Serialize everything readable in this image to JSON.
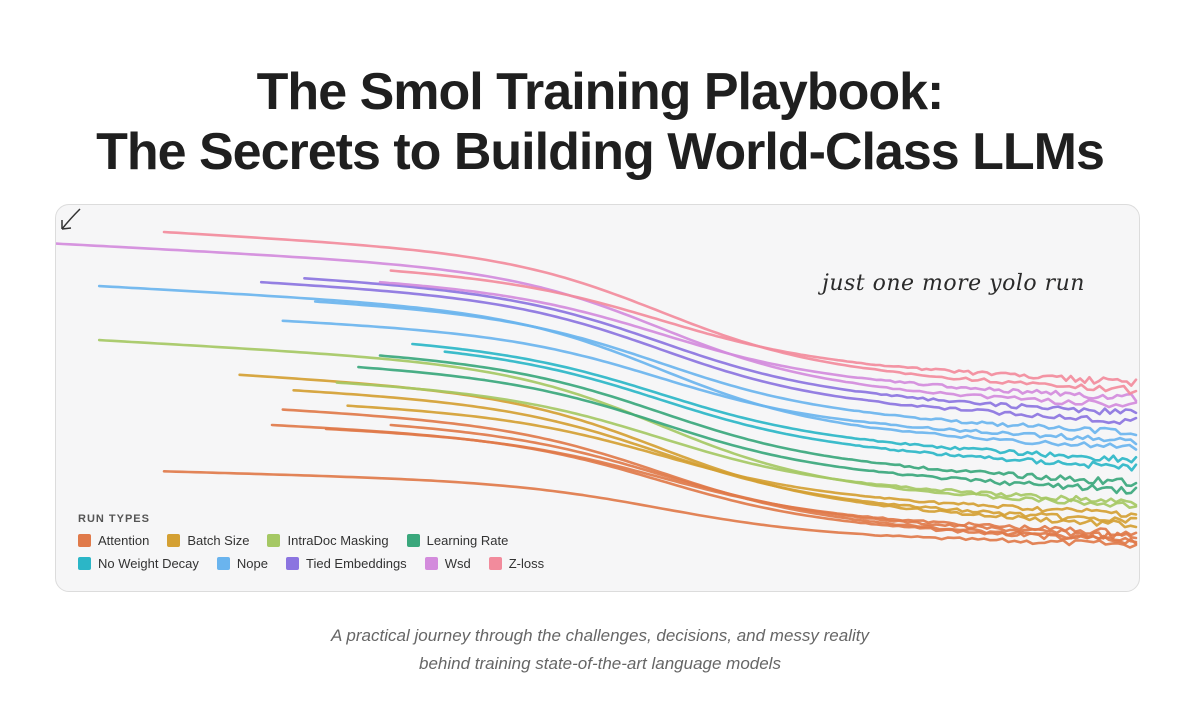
{
  "title": {
    "line1": "The Smol Training Playbook:",
    "line2": "The Secrets to Building World-Class LLMs"
  },
  "subtitle": {
    "line1": "A practical journey through the challenges, decisions, and messy reality",
    "line2": "behind training state-of-the-art language models"
  },
  "chart_data": {
    "type": "line",
    "title": "",
    "xlabel": "",
    "ylabel": "",
    "annotation": "just one more yolo run",
    "grid": false,
    "legend_placement": "bottom-left",
    "legend_title": "RUN TYPES",
    "series": [
      {
        "name": "Attention",
        "color": "#e07a4a",
        "start": [
          0.1,
          0.69
        ],
        "end": 0.88
      },
      {
        "name": "Attention",
        "color": "#e07a4a",
        "start": [
          0.21,
          0.53
        ],
        "end": 0.87
      },
      {
        "name": "Attention",
        "color": "#e07a4a",
        "start": [
          0.2,
          0.57
        ],
        "end": 0.87
      },
      {
        "name": "Attention",
        "color": "#e07a4a",
        "start": [
          0.31,
          0.57
        ],
        "end": 0.86
      },
      {
        "name": "Attention",
        "color": "#e07a4a",
        "start": [
          0.25,
          0.58
        ],
        "end": 0.85
      },
      {
        "name": "Batch Size",
        "color": "#d4a033",
        "start": [
          0.17,
          0.44
        ],
        "end": 0.83
      },
      {
        "name": "Batch Size",
        "color": "#d4a033",
        "start": [
          0.22,
          0.48
        ],
        "end": 0.82
      },
      {
        "name": "Batch Size",
        "color": "#d4a033",
        "start": [
          0.27,
          0.52
        ],
        "end": 0.8
      },
      {
        "name": "IntraDoc Masking",
        "color": "#a5c864",
        "start": [
          0.04,
          0.35
        ],
        "end": 0.78
      },
      {
        "name": "IntraDoc Masking",
        "color": "#a5c864",
        "start": [
          0.26,
          0.46
        ],
        "end": 0.77
      },
      {
        "name": "Learning Rate",
        "color": "#3aa77c",
        "start": [
          0.28,
          0.42
        ],
        "end": 0.74
      },
      {
        "name": "Learning Rate",
        "color": "#3aa77c",
        "start": [
          0.3,
          0.39
        ],
        "end": 0.72
      },
      {
        "name": "No Weight Decay",
        "color": "#2bb6c7",
        "start": [
          0.36,
          0.38
        ],
        "end": 0.68
      },
      {
        "name": "No Weight Decay",
        "color": "#2bb6c7",
        "start": [
          0.33,
          0.36
        ],
        "end": 0.66
      },
      {
        "name": "Nope",
        "color": "#6ab4ee",
        "start": [
          0.04,
          0.21
        ],
        "end": 0.63
      },
      {
        "name": "Nope",
        "color": "#6ab4ee",
        "start": [
          0.21,
          0.3
        ],
        "end": 0.61
      },
      {
        "name": "Nope",
        "color": "#6ab4ee",
        "start": [
          0.24,
          0.25
        ],
        "end": 0.59
      },
      {
        "name": "Tied Embeddings",
        "color": "#8b74e0",
        "start": [
          0.19,
          0.2
        ],
        "end": 0.56
      },
      {
        "name": "Tied Embeddings",
        "color": "#8b74e0",
        "start": [
          0.23,
          0.19
        ],
        "end": 0.54
      },
      {
        "name": "Wsd",
        "color": "#d38bdc",
        "start": [
          0.0,
          0.1
        ],
        "end": 0.52
      },
      {
        "name": "Wsd",
        "color": "#d38bdc",
        "start": [
          0.3,
          0.2
        ],
        "end": 0.5
      },
      {
        "name": "Z-loss",
        "color": "#f28b9c",
        "start": [
          0.1,
          0.07
        ],
        "end": 0.48
      },
      {
        "name": "Z-loss",
        "color": "#f28b9c",
        "start": [
          0.31,
          0.17
        ],
        "end": 0.46
      }
    ]
  },
  "legend": {
    "title": "RUN TYPES",
    "row1": [
      {
        "label": "Attention",
        "color": "#e07a4a"
      },
      {
        "label": "Batch Size",
        "color": "#d4a033"
      },
      {
        "label": "IntraDoc Masking",
        "color": "#a5c864"
      },
      {
        "label": "Learning Rate",
        "color": "#3aa77c"
      }
    ],
    "row2": [
      {
        "label": "No Weight Decay",
        "color": "#2bb6c7"
      },
      {
        "label": "Nope",
        "color": "#6ab4ee"
      },
      {
        "label": "Tied Embeddings",
        "color": "#8b74e0"
      },
      {
        "label": "Wsd",
        "color": "#d38bdc"
      },
      {
        "label": "Z-loss",
        "color": "#f28b9c"
      }
    ]
  }
}
